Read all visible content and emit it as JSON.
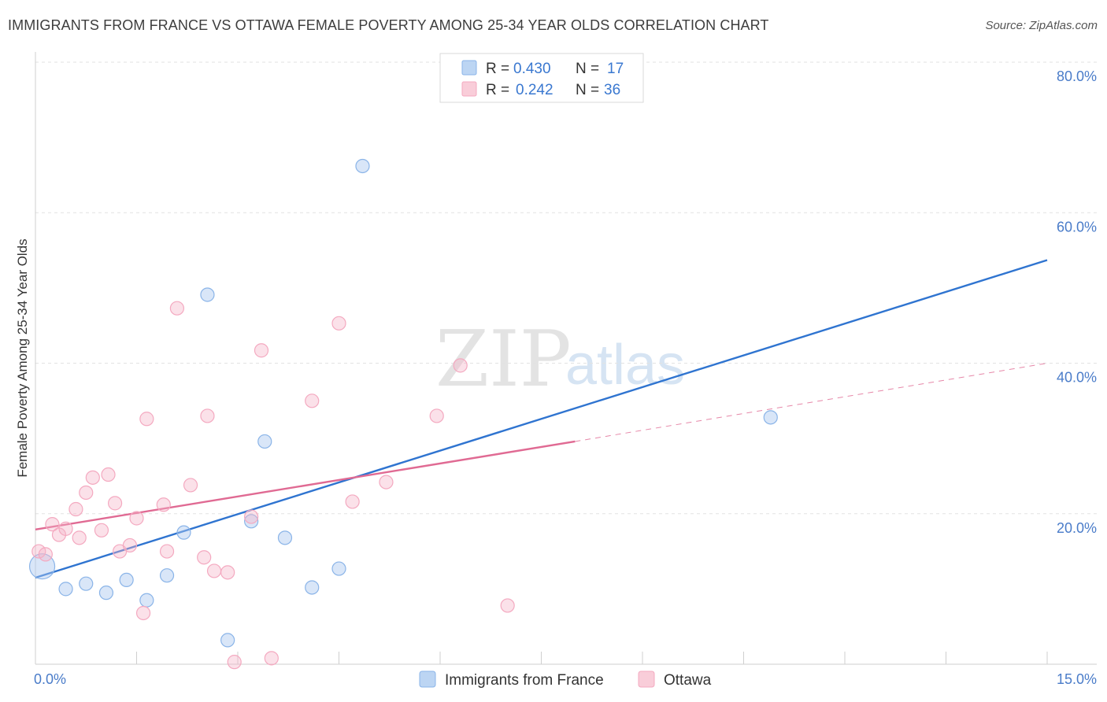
{
  "header": {
    "title": "IMMIGRANTS FROM FRANCE VS OTTAWA FEMALE POVERTY AMONG 25-34 YEAR OLDS CORRELATION CHART",
    "source": "Source: ZipAtlas.com"
  },
  "watermark": {
    "zip": "ZIP",
    "atlas": "atlas"
  },
  "colors": {
    "france": "#8ab4e8",
    "france_line": "#2f74d0",
    "ottawa": "#f4a9c0",
    "ottawa_line": "#e06a93",
    "grid": "#e2e2e2",
    "tick_label": "#4a7cc9"
  },
  "legend": {
    "rows": [
      {
        "r_label": "R = ",
        "r_value": "0.430",
        "n_label": "N = ",
        "n_value": "17",
        "series": "france"
      },
      {
        "r_label": "R = ",
        "r_value": "0.242",
        "n_label": "N = ",
        "n_value": "36",
        "series": "ottawa"
      }
    ]
  },
  "chart_data": {
    "type": "scatter",
    "title": "IMMIGRANTS FROM FRANCE VS OTTAWA FEMALE POVERTY AMONG 25-34 YEAR OLDS CORRELATION CHART",
    "xlabel": "",
    "ylabel": "Female Poverty Among 25-34 Year Olds",
    "xlim": [
      0,
      15
    ],
    "ylim": [
      0,
      80
    ],
    "x_tick_labels": [
      "0.0%",
      "15.0%"
    ],
    "y_tick_values": [
      20,
      40,
      60,
      80
    ],
    "y_tick_labels": [
      "20.0%",
      "40.0%",
      "60.0%",
      "80.0%"
    ],
    "grid": true,
    "series": [
      {
        "name": "Immigrants from France",
        "key": "france",
        "points": [
          {
            "x": 0.1,
            "y": 13.0,
            "big": true
          },
          {
            "x": 0.45,
            "y": 10.0
          },
          {
            "x": 0.75,
            "y": 10.7
          },
          {
            "x": 1.05,
            "y": 9.5
          },
          {
            "x": 1.35,
            "y": 11.2
          },
          {
            "x": 1.65,
            "y": 8.5
          },
          {
            "x": 1.95,
            "y": 11.8
          },
          {
            "x": 2.2,
            "y": 17.5
          },
          {
            "x": 2.55,
            "y": 49.1
          },
          {
            "x": 2.85,
            "y": 3.2
          },
          {
            "x": 3.2,
            "y": 19.0
          },
          {
            "x": 3.4,
            "y": 29.6
          },
          {
            "x": 3.7,
            "y": 16.8
          },
          {
            "x": 4.1,
            "y": 10.2
          },
          {
            "x": 4.5,
            "y": 12.7
          },
          {
            "x": 4.85,
            "y": 66.2
          },
          {
            "x": 10.9,
            "y": 32.8
          }
        ],
        "trend": {
          "x_start": 0.0,
          "y_start": 11.5,
          "x_end": 15.0,
          "y_end": 53.7
        }
      },
      {
        "name": "Ottawa",
        "key": "ottawa",
        "points": [
          {
            "x": 0.05,
            "y": 15.0
          },
          {
            "x": 0.15,
            "y": 14.6
          },
          {
            "x": 0.25,
            "y": 18.6
          },
          {
            "x": 0.35,
            "y": 17.2
          },
          {
            "x": 0.45,
            "y": 18.0
          },
          {
            "x": 0.6,
            "y": 20.6
          },
          {
            "x": 0.65,
            "y": 16.8
          },
          {
            "x": 0.75,
            "y": 22.8
          },
          {
            "x": 0.85,
            "y": 24.8
          },
          {
            "x": 0.98,
            "y": 17.8
          },
          {
            "x": 1.08,
            "y": 25.2
          },
          {
            "x": 1.18,
            "y": 21.4
          },
          {
            "x": 1.25,
            "y": 15.0
          },
          {
            "x": 1.4,
            "y": 15.8
          },
          {
            "x": 1.5,
            "y": 19.4
          },
          {
            "x": 1.6,
            "y": 6.8
          },
          {
            "x": 1.65,
            "y": 32.6
          },
          {
            "x": 1.9,
            "y": 21.2
          },
          {
            "x": 1.95,
            "y": 15.0
          },
          {
            "x": 2.1,
            "y": 47.3
          },
          {
            "x": 2.3,
            "y": 23.8
          },
          {
            "x": 2.5,
            "y": 14.2
          },
          {
            "x": 2.55,
            "y": 33.0
          },
          {
            "x": 2.65,
            "y": 12.4
          },
          {
            "x": 2.85,
            "y": 12.2
          },
          {
            "x": 2.95,
            "y": 0.3
          },
          {
            "x": 3.2,
            "y": 19.6
          },
          {
            "x": 3.35,
            "y": 41.7
          },
          {
            "x": 3.5,
            "y": 0.8
          },
          {
            "x": 4.1,
            "y": 35.0
          },
          {
            "x": 4.5,
            "y": 45.3
          },
          {
            "x": 4.7,
            "y": 21.6
          },
          {
            "x": 5.2,
            "y": 24.2
          },
          {
            "x": 5.95,
            "y": 33.0
          },
          {
            "x": 6.3,
            "y": 39.7
          },
          {
            "x": 7.0,
            "y": 7.8
          }
        ],
        "trend": {
          "x_start": 0.0,
          "y_start": 17.9,
          "x_end": 8.0,
          "y_end": 29.6
        },
        "trend_dashed": {
          "x_start": 8.0,
          "y_start": 29.6,
          "x_end": 15.0,
          "y_end": 40.0
        }
      }
    ]
  },
  "bottom_legend": [
    {
      "label": "Immigrants from France",
      "series": "france"
    },
    {
      "label": "Ottawa",
      "series": "ottawa"
    }
  ]
}
